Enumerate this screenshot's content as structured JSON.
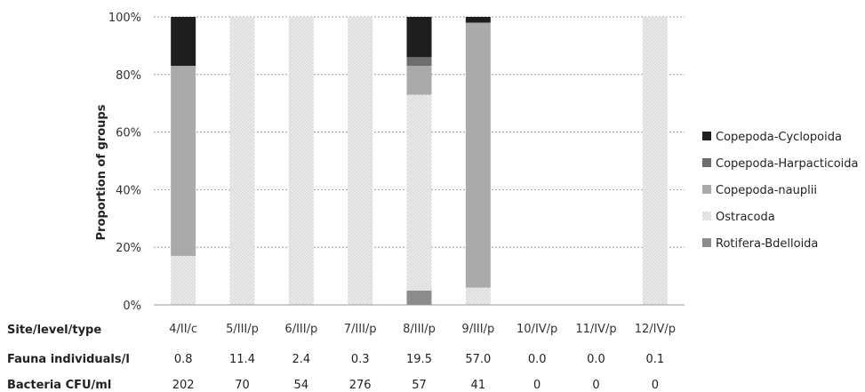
{
  "chart_data": {
    "type": "bar",
    "stacked": true,
    "categories": [
      "4/II/c",
      "5/III/p",
      "6/III/p",
      "7/III/p",
      "8/III/p",
      "9/III/p",
      "10/IV/p",
      "11/IV/p",
      "12/IV/p"
    ],
    "ylabel": "Proportion of groups",
    "ylim": [
      0,
      100
    ],
    "yticks": [
      "0%",
      "20%",
      "40%",
      "60%",
      "80%",
      "100%"
    ],
    "grid": true,
    "legend_position": "right",
    "series": [
      {
        "name": "Rotifera-Bdelloida",
        "color": "#8c8c8c",
        "values": [
          0,
          0,
          0,
          0,
          5,
          0,
          0,
          0,
          0
        ]
      },
      {
        "name": "Ostracoda",
        "color": "#e6e6e6",
        "values": [
          17,
          100,
          100,
          100,
          68,
          6,
          0,
          0,
          100
        ]
      },
      {
        "name": "Copepoda-nauplii",
        "color": "#aaaaaa",
        "values": [
          66,
          0,
          0,
          0,
          10,
          92,
          0,
          0,
          0
        ]
      },
      {
        "name": "Copepoda-Harpacticoida",
        "color": "#6e6e6e",
        "values": [
          0,
          0,
          0,
          0,
          3,
          0,
          0,
          0,
          0
        ]
      },
      {
        "name": "Copepoda-Cyclopoida",
        "color": "#1e1e1e",
        "values": [
          17,
          0,
          0,
          0,
          14,
          2,
          0,
          0,
          0
        ]
      }
    ],
    "legend_order": [
      "Copepoda-Cyclopoida",
      "Copepoda-Harpacticoida",
      "Copepoda-nauplii",
      "Ostracoda",
      "Rotifera-Bdelloida"
    ]
  },
  "table": {
    "site_title": "Site/level/type",
    "rows": [
      {
        "title": "Fauna individuals/l",
        "values": [
          "0.8",
          "11.4",
          "2.4",
          "0.3",
          "19.5",
          "57.0",
          "0.0",
          "0.0",
          "0.1"
        ]
      },
      {
        "title": "Bacteria CFU/ml",
        "values": [
          "202",
          "70",
          "54",
          "276",
          "57",
          "41",
          "0",
          "0",
          "0"
        ]
      }
    ]
  }
}
